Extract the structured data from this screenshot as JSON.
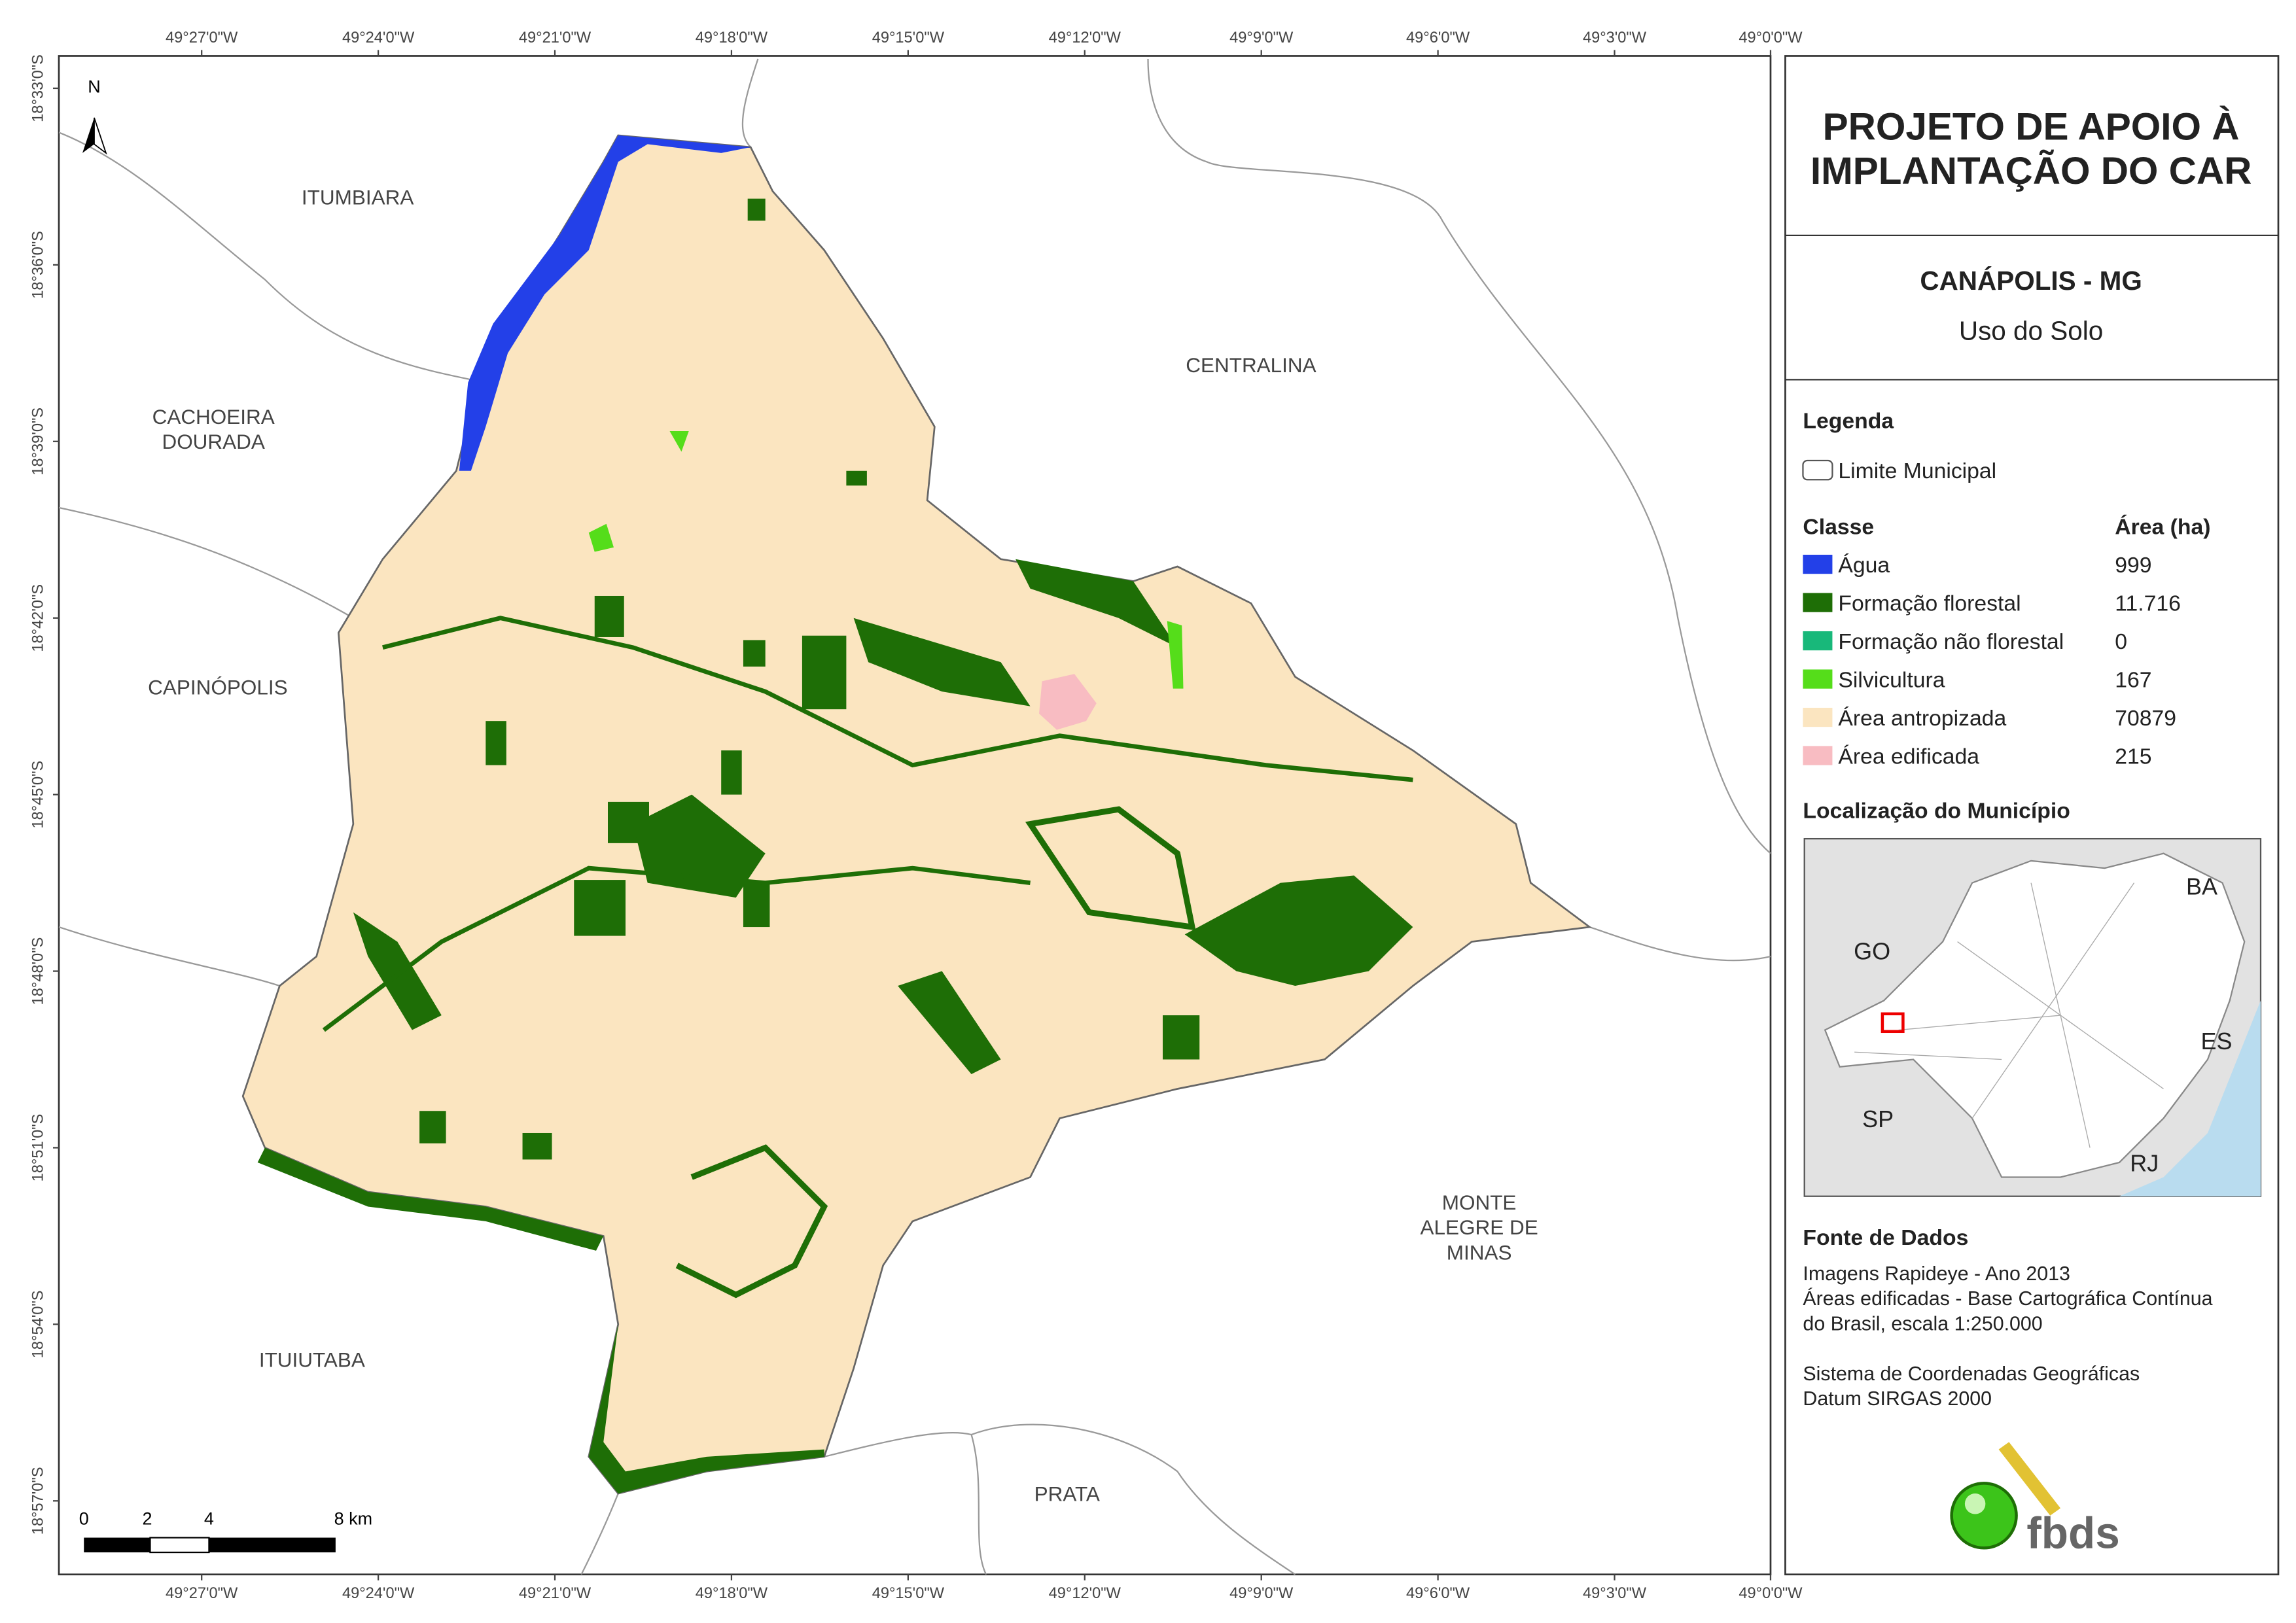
{
  "map": {
    "north": "N",
    "x_labels": [
      "49°27'0\"W",
      "49°24'0\"W",
      "49°21'0\"W",
      "49°18'0\"W",
      "49°15'0\"W",
      "49°12'0\"W",
      "49°9'0\"W",
      "49°6'0\"W",
      "49°3'0\"W",
      "49°0'0\"W"
    ],
    "y_labels": [
      "18°33'0\"S",
      "18°36'0\"S",
      "18°39'0\"S",
      "18°42'0\"S",
      "18°45'0\"S",
      "18°48'0\"S",
      "18°51'0\"S",
      "18°54'0\"S",
      "18°57'0\"S"
    ],
    "places": [
      {
        "lines": [
          "ITUMBIARA"
        ]
      },
      {
        "lines": [
          "CACHOEIRA",
          "DOURADA"
        ]
      },
      {
        "lines": [
          "CENTRALINA"
        ]
      },
      {
        "lines": [
          "CAPINÓPOLIS"
        ]
      },
      {
        "lines": [
          "MONTE",
          "ALEGRE DE",
          "MINAS"
        ]
      },
      {
        "lines": [
          "ITUIUTABA"
        ]
      },
      {
        "lines": [
          "PRATA"
        ]
      }
    ],
    "scale_labels": [
      "0",
      "2",
      "4",
      "8 km"
    ]
  },
  "panel": {
    "title": [
      "PROJETO DE APOIO À",
      "IMPLANTAÇÃO DO CAR"
    ],
    "municipality": "CANÁPOLIS - MG",
    "subtitle": "Uso do Solo",
    "legend_heading": "Legenda",
    "boundary": "Limite Municipal",
    "class_heading": "Classe",
    "area_heading": "Área (ha)",
    "classes": [
      {
        "name": "Água",
        "area": "999"
      },
      {
        "name": "Formação florestal",
        "area": "11.716"
      },
      {
        "name": "Formação não florestal",
        "area": "0"
      },
      {
        "name": "Silvicultura",
        "area": "167"
      },
      {
        "name": "Área antropizada",
        "area": "70879"
      },
      {
        "name": "Área edificada",
        "area": "215"
      }
    ],
    "location_heading": "Localização do Município",
    "location_labels": [
      "GO",
      "BA",
      "ES",
      "SP",
      "RJ"
    ],
    "source_heading": "Fonte de Dados",
    "source_lines": [
      "Imagens Rapideye - Ano 2013",
      "Áreas edificadas - Base Cartográfica Contínua",
      "do Brasil, escala 1:250.000",
      "",
      "Sistema de Coordenadas Geográficas",
      "Datum SIRGAS 2000"
    ],
    "logo": "fbds"
  }
}
